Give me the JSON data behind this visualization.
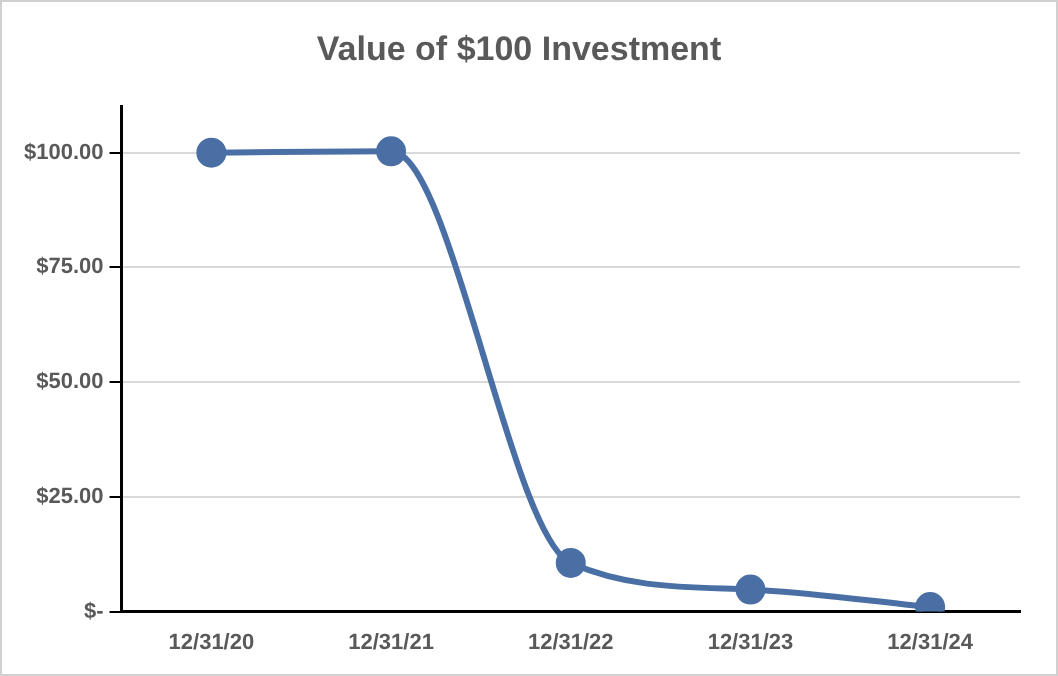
{
  "chart_data": {
    "type": "line",
    "title": "Value of $100 Investment",
    "categories": [
      "12/31/20",
      "12/31/21",
      "12/31/22",
      "12/31/23",
      "12/31/24"
    ],
    "series": [
      {
        "color": "#4a6fa5",
        "values": [
          100,
          100.3,
          10.6,
          4.8,
          1.0
        ]
      }
    ],
    "ylim": [
      0,
      110
    ],
    "yticks": [
      {
        "value": 0,
        "label": "$-"
      },
      {
        "value": 25,
        "label": "$25.00"
      },
      {
        "value": 50,
        "label": "$50.00"
      },
      {
        "value": 75,
        "label": "$75.00"
      },
      {
        "value": 100,
        "label": "$100.00"
      }
    ],
    "grid": "y",
    "legend": false,
    "marker": "circle",
    "line_style": "solid"
  }
}
